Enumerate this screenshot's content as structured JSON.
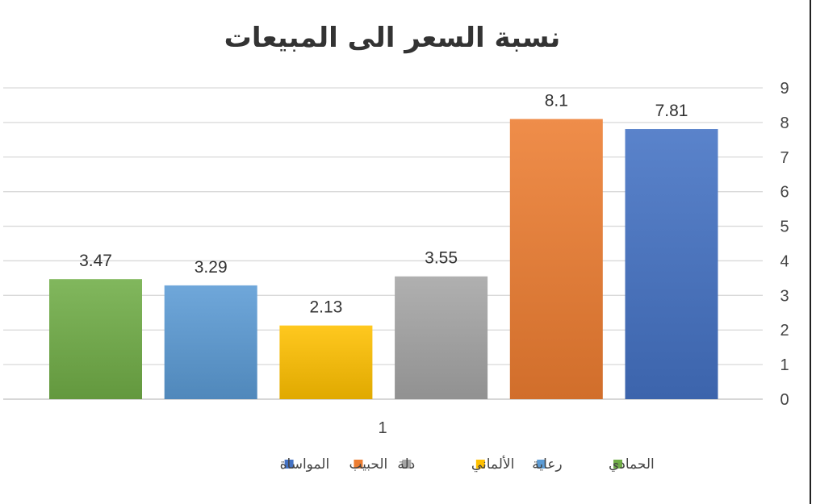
{
  "chart_data": {
    "type": "bar",
    "title": "نسبة السعر الى المبيعات",
    "categories": [
      "1"
    ],
    "series": [
      {
        "name": "الحمادي",
        "values": [
          3.47
        ],
        "color": "#70AD47"
      },
      {
        "name": "رعاية",
        "values": [
          3.29
        ],
        "color": "#5B9BD5"
      },
      {
        "name": "الألماني",
        "values": [
          2.13
        ],
        "color": "#FFC000"
      },
      {
        "name": "دلة",
        "values": [
          3.55
        ],
        "color": "#A5A5A5"
      },
      {
        "name": "الحبيب",
        "values": [
          8.1
        ],
        "color": "#ED7D31"
      },
      {
        "name": "المواساة",
        "values": [
          7.81
        ],
        "color": "#4472C4"
      }
    ],
    "data_labels": [
      "3.47",
      "3.29",
      "2.13",
      "3.55",
      "8.1",
      "7.81"
    ],
    "ylim": [
      0,
      9
    ],
    "y_ticks": [
      "0",
      "1",
      "2",
      "3",
      "4",
      "5",
      "6",
      "7",
      "8",
      "9"
    ],
    "y_axis_side": "right",
    "grid": true,
    "legend_position": "bottom",
    "xlabel": "",
    "ylabel": ""
  }
}
